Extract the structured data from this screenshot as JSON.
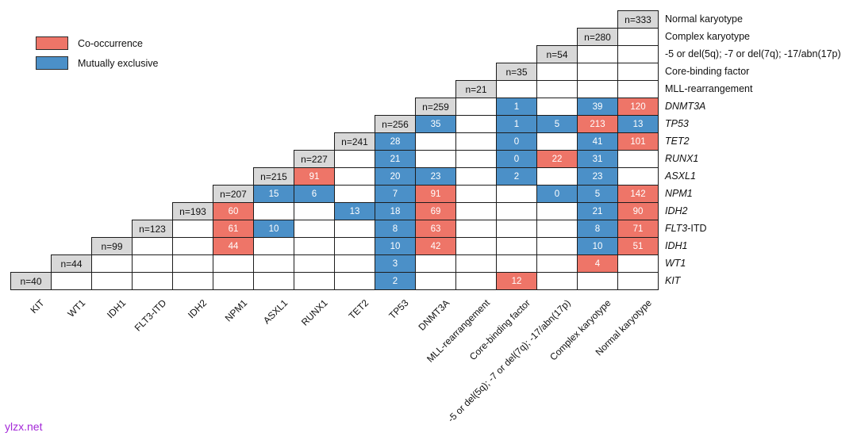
{
  "watermark": {
    "text": "ylzx.net",
    "color": "#A428D8"
  },
  "legend": [
    {
      "label": "Co-occurrence",
      "color": "#EE7568"
    },
    {
      "label": "Mutually exclusive",
      "color": "#4B90C8"
    }
  ],
  "colors": {
    "co_occurrence": "#EE7568",
    "mutually_exclusive": "#4B90C8",
    "diagonal_fill": "#D8D8D8",
    "border": "#1C1C1C"
  },
  "chart_data": {
    "type": "heatmap",
    "subtype": "triangular-co-occurrence-matrix",
    "title": "",
    "xlabel": "",
    "ylabel": "",
    "grid": {
      "n_cols": 16,
      "n_rows": 16
    },
    "legend_position": "top-left",
    "columns": [
      "KIT",
      "WT1",
      "IDH1",
      "FLT3-ITD",
      "IDH2",
      "NPM1",
      "ASXL1",
      "RUNX1",
      "TET2",
      "TP53",
      "DNMT3A",
      "MLL-rearrangement",
      "Core-binding factor",
      "-5 or del(5q); -7 or del(7q); -17/abn(17p)",
      "Complex karyotype",
      "Normal karyotype"
    ],
    "rows": [
      {
        "label": "Normal karyotype",
        "suffix": "",
        "italic": false,
        "n": 333,
        "cells": []
      },
      {
        "label": "Complex karyotype",
        "suffix": "",
        "italic": false,
        "n": 280,
        "cells": []
      },
      {
        "label": "-5 or del(5q); -7 or del(7q); -17/abn(17p)",
        "suffix": "",
        "italic": false,
        "n": 54,
        "cells": []
      },
      {
        "label": "Core-binding factor",
        "suffix": "",
        "italic": false,
        "n": 35,
        "cells": []
      },
      {
        "label": "MLL-rearrangement",
        "suffix": "",
        "italic": false,
        "n": 21,
        "cells": []
      },
      {
        "label": "DNMT3A",
        "suffix": "",
        "italic": true,
        "n": 259,
        "cells": [
          {
            "col": "Core-binding factor",
            "value": 1,
            "type": "mutually_exclusive"
          },
          {
            "col": "Complex karyotype",
            "value": 39,
            "type": "mutually_exclusive"
          },
          {
            "col": "Normal karyotype",
            "value": 120,
            "type": "co_occurrence"
          }
        ]
      },
      {
        "label": "TP53",
        "suffix": "",
        "italic": true,
        "n": 256,
        "cells": [
          {
            "col": "DNMT3A",
            "value": 35,
            "type": "mutually_exclusive"
          },
          {
            "col": "Core-binding factor",
            "value": 1,
            "type": "mutually_exclusive"
          },
          {
            "col": "-5 or del(5q); -7 or del(7q); -17/abn(17p)",
            "value": 5,
            "type": "mutually_exclusive"
          },
          {
            "col": "Complex karyotype",
            "value": 213,
            "type": "co_occurrence"
          },
          {
            "col": "Normal karyotype",
            "value": 13,
            "type": "mutually_exclusive"
          }
        ]
      },
      {
        "label": "TET2",
        "suffix": "",
        "italic": true,
        "n": 241,
        "cells": [
          {
            "col": "TP53",
            "value": 28,
            "type": "mutually_exclusive"
          },
          {
            "col": "Core-binding factor",
            "value": 0,
            "type": "mutually_exclusive"
          },
          {
            "col": "Complex karyotype",
            "value": 41,
            "type": "mutually_exclusive"
          },
          {
            "col": "Normal karyotype",
            "value": 101,
            "type": "co_occurrence"
          }
        ]
      },
      {
        "label": "RUNX1",
        "suffix": "",
        "italic": true,
        "n": 227,
        "cells": [
          {
            "col": "TP53",
            "value": 21,
            "type": "mutually_exclusive"
          },
          {
            "col": "Core-binding factor",
            "value": 0,
            "type": "mutually_exclusive"
          },
          {
            "col": "-5 or del(5q); -7 or del(7q); -17/abn(17p)",
            "value": 22,
            "type": "co_occurrence"
          },
          {
            "col": "Complex karyotype",
            "value": 31,
            "type": "mutually_exclusive"
          }
        ]
      },
      {
        "label": "ASXL1",
        "suffix": "",
        "italic": true,
        "n": 215,
        "cells": [
          {
            "col": "RUNX1",
            "value": 91,
            "type": "co_occurrence"
          },
          {
            "col": "TP53",
            "value": 20,
            "type": "mutually_exclusive"
          },
          {
            "col": "DNMT3A",
            "value": 23,
            "type": "mutually_exclusive"
          },
          {
            "col": "Core-binding factor",
            "value": 2,
            "type": "mutually_exclusive"
          },
          {
            "col": "Complex karyotype",
            "value": 23,
            "type": "mutually_exclusive"
          }
        ]
      },
      {
        "label": "NPM1",
        "suffix": "",
        "italic": true,
        "n": 207,
        "cells": [
          {
            "col": "ASXL1",
            "value": 15,
            "type": "mutually_exclusive"
          },
          {
            "col": "RUNX1",
            "value": 6,
            "type": "mutually_exclusive"
          },
          {
            "col": "TP53",
            "value": 7,
            "type": "mutually_exclusive"
          },
          {
            "col": "DNMT3A",
            "value": 91,
            "type": "co_occurrence"
          },
          {
            "col": "-5 or del(5q); -7 or del(7q); -17/abn(17p)",
            "value": 0,
            "type": "mutually_exclusive"
          },
          {
            "col": "Complex karyotype",
            "value": 5,
            "type": "mutually_exclusive"
          },
          {
            "col": "Normal karyotype",
            "value": 142,
            "type": "co_occurrence"
          }
        ]
      },
      {
        "label": "IDH2",
        "suffix": "",
        "italic": true,
        "n": 193,
        "cells": [
          {
            "col": "NPM1",
            "value": 60,
            "type": "co_occurrence"
          },
          {
            "col": "TET2",
            "value": 13,
            "type": "mutually_exclusive"
          },
          {
            "col": "TP53",
            "value": 18,
            "type": "mutually_exclusive"
          },
          {
            "col": "DNMT3A",
            "value": 69,
            "type": "co_occurrence"
          },
          {
            "col": "Complex karyotype",
            "value": 21,
            "type": "mutually_exclusive"
          },
          {
            "col": "Normal karyotype",
            "value": 90,
            "type": "co_occurrence"
          }
        ]
      },
      {
        "label": "FLT3",
        "suffix": "-ITD",
        "italic": true,
        "n": 123,
        "cells": [
          {
            "col": "NPM1",
            "value": 61,
            "type": "co_occurrence"
          },
          {
            "col": "ASXL1",
            "value": 10,
            "type": "mutually_exclusive"
          },
          {
            "col": "TP53",
            "value": 8,
            "type": "mutually_exclusive"
          },
          {
            "col": "DNMT3A",
            "value": 63,
            "type": "co_occurrence"
          },
          {
            "col": "Complex karyotype",
            "value": 8,
            "type": "mutually_exclusive"
          },
          {
            "col": "Normal karyotype",
            "value": 71,
            "type": "co_occurrence"
          }
        ]
      },
      {
        "label": "IDH1",
        "suffix": "",
        "italic": true,
        "n": 99,
        "cells": [
          {
            "col": "NPM1",
            "value": 44,
            "type": "co_occurrence"
          },
          {
            "col": "TP53",
            "value": 10,
            "type": "mutually_exclusive"
          },
          {
            "col": "DNMT3A",
            "value": 42,
            "type": "co_occurrence"
          },
          {
            "col": "Complex karyotype",
            "value": 10,
            "type": "mutually_exclusive"
          },
          {
            "col": "Normal karyotype",
            "value": 51,
            "type": "co_occurrence"
          }
        ]
      },
      {
        "label": "WT1",
        "suffix": "",
        "italic": true,
        "n": 44,
        "cells": [
          {
            "col": "TP53",
            "value": 3,
            "type": "mutually_exclusive"
          },
          {
            "col": "Complex karyotype",
            "value": 4,
            "type": "co_occurrence"
          }
        ]
      },
      {
        "label": "KIT",
        "suffix": "",
        "italic": true,
        "n": 40,
        "cells": [
          {
            "col": "TP53",
            "value": 2,
            "type": "mutually_exclusive"
          },
          {
            "col": "Core-binding factor",
            "value": 12,
            "type": "co_occurrence"
          }
        ]
      }
    ]
  }
}
